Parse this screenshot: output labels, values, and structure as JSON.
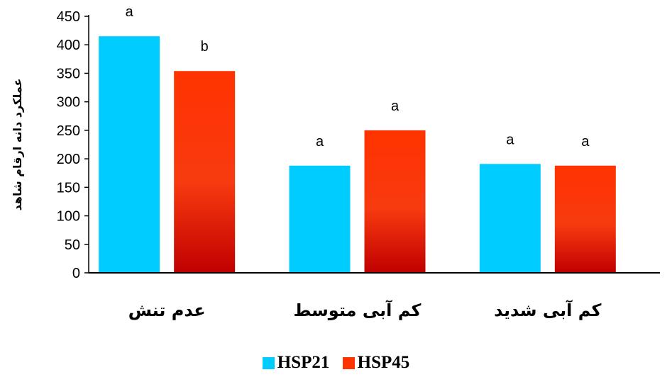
{
  "chart_data": {
    "type": "bar",
    "title": "",
    "xlabel": "",
    "ylabel": "عملکرد دانه ارقام شاهد",
    "ylim": [
      0,
      450
    ],
    "yticks": [
      0,
      50,
      100,
      150,
      200,
      250,
      300,
      350,
      400,
      450
    ],
    "grid": false,
    "legend_position": "bottom",
    "categories": [
      "عدم تنش",
      "کم آبی متوسط",
      "کم آبی شدید"
    ],
    "series": [
      {
        "name": "HSP21",
        "color": "#00CCFF",
        "values": [
          415,
          188,
          191
        ],
        "labels": [
          "a",
          "a",
          "a"
        ]
      },
      {
        "name": "HSP45",
        "color": "#FF3300",
        "values": [
          354,
          250,
          188
        ],
        "labels": [
          "b",
          "a",
          "a"
        ]
      }
    ]
  }
}
